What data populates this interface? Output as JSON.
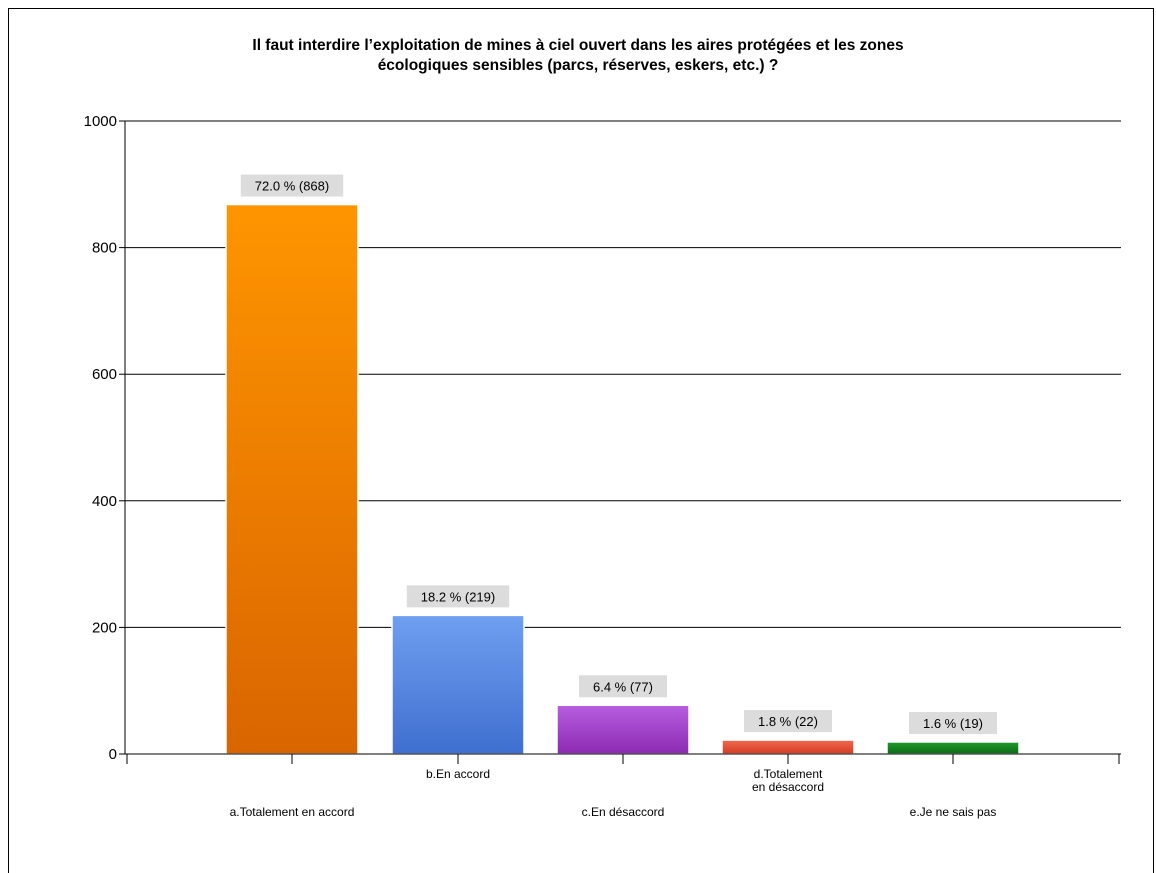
{
  "chart_data": {
    "type": "bar",
    "title": [
      "Il faut interdire l’exploitation de mines à ciel ouvert dans les aires protégées et les zones",
      "écologiques sensibles (parcs, réserves, eskers, etc.) ?"
    ],
    "categories": [
      [
        "a.Totalement en accord"
      ],
      [
        "b.En accord"
      ],
      [
        "c.En désaccord"
      ],
      [
        "d.Totalement",
        "en désaccord"
      ],
      [
        "e.Je ne sais pas"
      ]
    ],
    "values": [
      868,
      219,
      77,
      22,
      19
    ],
    "data_labels": [
      "72.0 % (868)",
      "18.2 % (219)",
      "6.4 % (77)",
      "1.8 % (22)",
      "1.6 % (19)"
    ],
    "yticks": [
      "0",
      "200",
      "400",
      "600",
      "800",
      "1000"
    ],
    "ylim": [
      0,
      1000
    ],
    "grid": true,
    "colors": [
      {
        "top": "#ff9500",
        "bottom": "#d96500"
      },
      {
        "top": "#6f9ff0",
        "bottom": "#3f6fcf"
      },
      {
        "top": "#b95ee0",
        "bottom": "#8a2ab2"
      },
      {
        "top": "#f06a50",
        "bottom": "#d43a22"
      },
      {
        "top": "#1f9a2a",
        "bottom": "#0c6b14"
      }
    ]
  }
}
